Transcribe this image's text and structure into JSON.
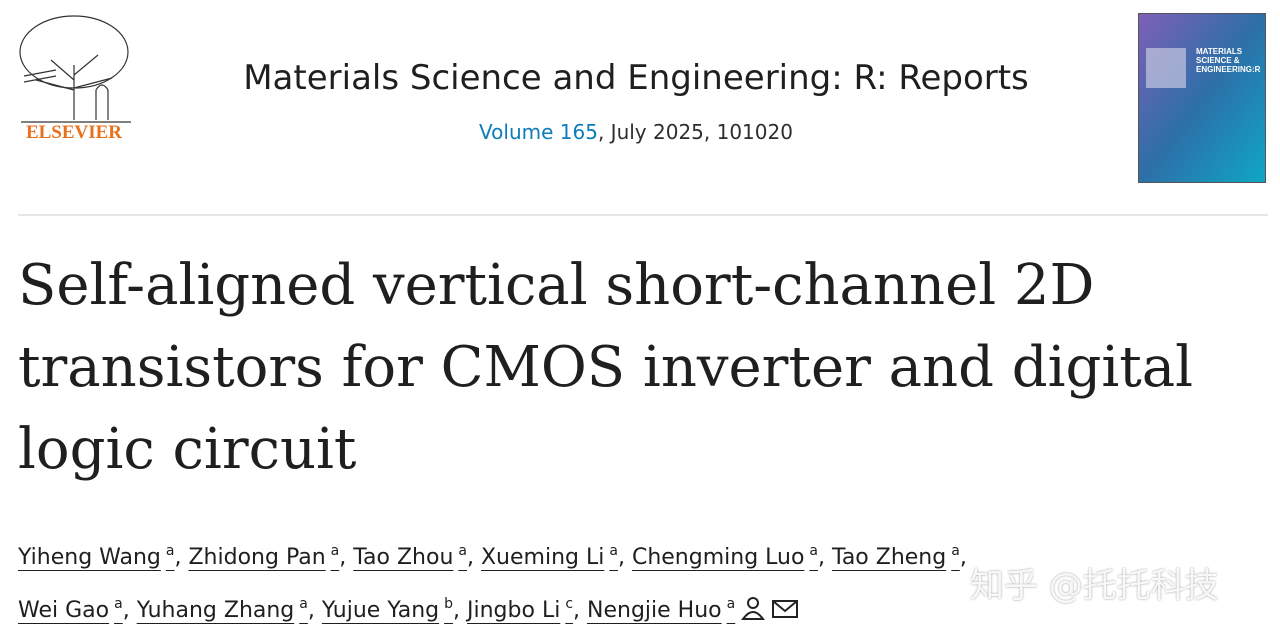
{
  "publisher": "ELSEVIER",
  "journal": {
    "name": "Materials Science and Engineering: R: Reports",
    "volume": "Volume 165",
    "issue_info": ", July 2025, 101020"
  },
  "cover": {
    "title": "MATERIALS SCIENCE & ENGINEERING:R"
  },
  "article": {
    "title_lines": [
      "Self-aligned vertical short-channel 2D",
      "transistors for CMOS inverter and digital",
      "logic circuit"
    ]
  },
  "separator": ",",
  "author_lines": [
    [
      {
        "name": "Yiheng Wang",
        "aff": "a"
      },
      {
        "name": "Zhidong Pan",
        "aff": "a"
      },
      {
        "name": "Tao Zhou",
        "aff": "a"
      },
      {
        "name": "Xueming Li",
        "aff": "a"
      },
      {
        "name": "Chengming Luo",
        "aff": "a"
      },
      {
        "name": "Tao Zheng",
        "aff": "a"
      }
    ],
    [
      {
        "name": "Wei Gao",
        "aff": "a"
      },
      {
        "name": "Yuhang Zhang",
        "aff": "a"
      },
      {
        "name": "Yujue Yang",
        "aff": "b"
      },
      {
        "name": "Jingbo Li",
        "aff": "c"
      },
      {
        "name": "Nengjie Huo",
        "aff": "a"
      }
    ]
  ],
  "watermark": "知乎 @托托科技"
}
